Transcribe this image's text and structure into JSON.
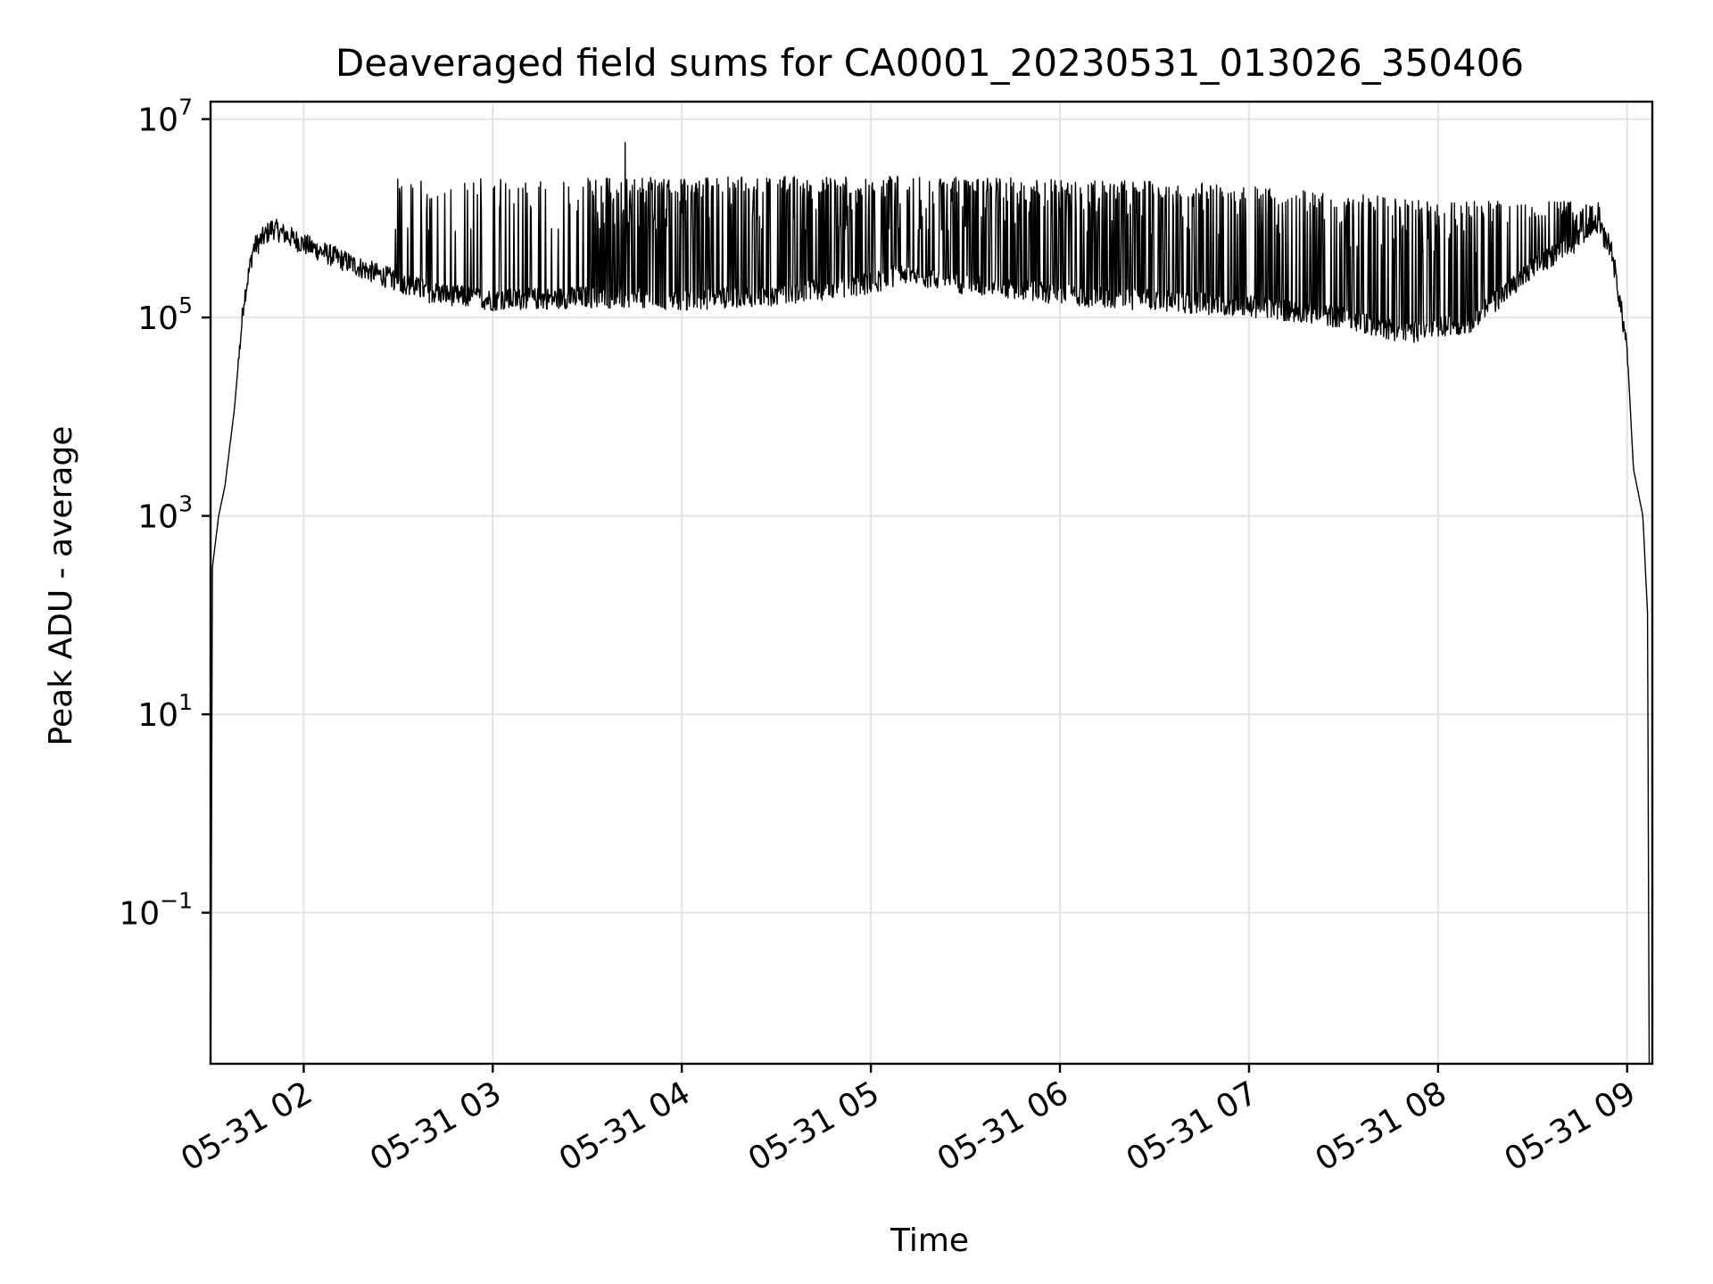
{
  "chart_data": {
    "type": "line",
    "title": "Deaveraged field sums for CA0001_20230531_013026_350406",
    "xlabel": "Time",
    "ylabel": "Peak ADU - average",
    "yscale": "log",
    "grid": true,
    "legend": "none",
    "line_color": "#000000",
    "xlim": [
      "2023-05-31T01:30:26",
      "2023-05-31T09:08:00"
    ],
    "ylim": [
      0.003,
      15000000
    ],
    "x_ticks": [
      {
        "value": "2023-05-31T02:00",
        "label": "05-31 02"
      },
      {
        "value": "2023-05-31T03:00",
        "label": "05-31 03"
      },
      {
        "value": "2023-05-31T04:00",
        "label": "05-31 04"
      },
      {
        "value": "2023-05-31T05:00",
        "label": "05-31 05"
      },
      {
        "value": "2023-05-31T06:00",
        "label": "05-31 06"
      },
      {
        "value": "2023-05-31T07:00",
        "label": "05-31 07"
      },
      {
        "value": "2023-05-31T08:00",
        "label": "05-31 08"
      },
      {
        "value": "2023-05-31T09:00",
        "label": "05-31 09"
      }
    ],
    "y_ticks": [
      {
        "value": 0.1,
        "base": "10",
        "exp": "−1"
      },
      {
        "value": 10,
        "base": "10",
        "exp": "1"
      },
      {
        "value": 1000,
        "base": "10",
        "exp": "3"
      },
      {
        "value": 100000,
        "base": "10",
        "exp": "5"
      },
      {
        "value": 10000000,
        "base": "10",
        "exp": "7"
      }
    ],
    "baseline": [
      {
        "t": "2023-05-31T01:30:30",
        "y": 0.003
      },
      {
        "t": "2023-05-31T01:31:00",
        "y": 300
      },
      {
        "t": "2023-05-31T01:33:00",
        "y": 1000
      },
      {
        "t": "2023-05-31T01:35:00",
        "y": 2000
      },
      {
        "t": "2023-05-31T01:38:00",
        "y": 12000
      },
      {
        "t": "2023-05-31T01:41:00",
        "y": 150000
      },
      {
        "t": "2023-05-31T01:44:00",
        "y": 500000
      },
      {
        "t": "2023-05-31T01:50:00",
        "y": 800000
      },
      {
        "t": "2023-05-31T02:00:00",
        "y": 550000
      },
      {
        "t": "2023-05-31T02:20:00",
        "y": 300000
      },
      {
        "t": "2023-05-31T02:40:00",
        "y": 180000
      },
      {
        "t": "2023-05-31T03:00:00",
        "y": 150000
      },
      {
        "t": "2023-05-31T03:30:00",
        "y": 160000
      },
      {
        "t": "2023-05-31T04:00:00",
        "y": 150000
      },
      {
        "t": "2023-05-31T04:30:00",
        "y": 170000
      },
      {
        "t": "2023-05-31T05:00:00",
        "y": 220000
      },
      {
        "t": "2023-05-31T05:10:00",
        "y": 280000
      },
      {
        "t": "2023-05-31T05:30:00",
        "y": 220000
      },
      {
        "t": "2023-05-31T06:00:00",
        "y": 170000
      },
      {
        "t": "2023-05-31T06:30:00",
        "y": 150000
      },
      {
        "t": "2023-05-31T07:00:00",
        "y": 130000
      },
      {
        "t": "2023-05-31T07:30:00",
        "y": 100000
      },
      {
        "t": "2023-05-31T07:50:00",
        "y": 70000
      },
      {
        "t": "2023-05-31T08:10:00",
        "y": 90000
      },
      {
        "t": "2023-05-31T08:30:00",
        "y": 300000
      },
      {
        "t": "2023-05-31T08:50:00",
        "y": 900000
      },
      {
        "t": "2023-05-31T08:55:00",
        "y": 500000
      },
      {
        "t": "2023-05-31T09:00:00",
        "y": 50000
      },
      {
        "t": "2023-05-31T09:02:00",
        "y": 3000
      },
      {
        "t": "2023-05-31T09:05:00",
        "y": 1000
      },
      {
        "t": "2023-05-31T09:06:30",
        "y": 100
      },
      {
        "t": "2023-05-31T09:07:00",
        "y": 0.003
      }
    ],
    "spike_envelope": [
      {
        "t": "2023-05-31T02:30:00",
        "y": 2500000
      },
      {
        "t": "2023-05-31T03:00:00",
        "y": 2500000
      },
      {
        "t": "2023-05-31T04:00:00",
        "y": 2600000
      },
      {
        "t": "2023-05-31T05:00:00",
        "y": 2700000
      },
      {
        "t": "2023-05-31T06:00:00",
        "y": 2500000
      },
      {
        "t": "2023-05-31T07:00:00",
        "y": 2200000
      },
      {
        "t": "2023-05-31T08:00:00",
        "y": 1500000
      },
      {
        "t": "2023-05-31T08:50:00",
        "y": 1500000
      }
    ],
    "notable_peak": {
      "t": "2023-05-31T03:42:00",
      "y": 5800000
    }
  }
}
